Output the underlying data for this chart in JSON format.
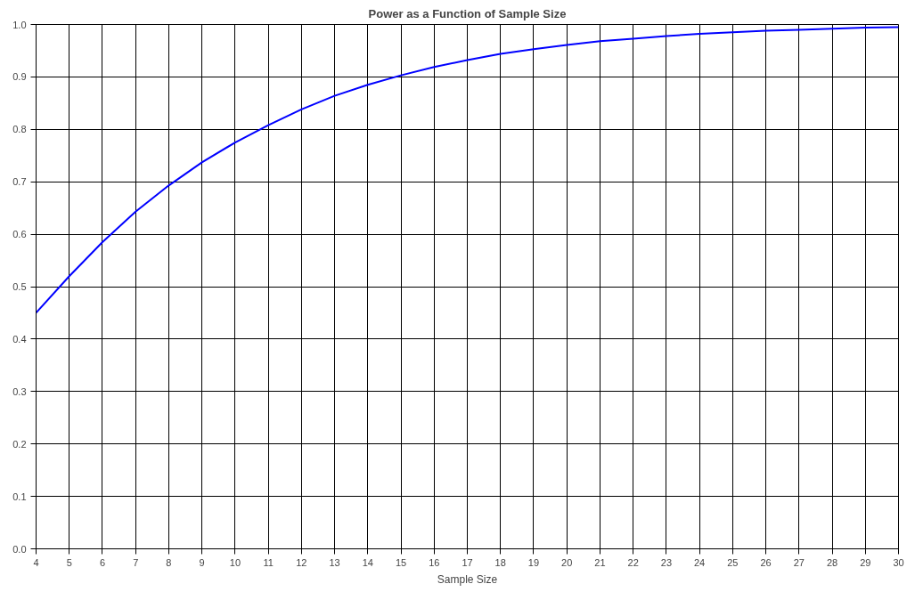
{
  "chart_data": {
    "type": "line",
    "title": "Power as a Function of Sample Size",
    "xlabel": "Sample Size",
    "x": [
      4,
      5,
      6,
      7,
      8,
      9,
      10,
      11,
      12,
      13,
      14,
      15,
      16,
      17,
      18,
      19,
      20,
      21,
      22,
      23,
      24,
      25,
      26,
      27,
      28,
      29,
      30
    ],
    "series": [
      {
        "color": "#0000ff",
        "values": [
          0.45,
          0.52,
          0.585,
          0.643,
          0.693,
          0.737,
          0.775,
          0.808,
          0.838,
          0.864,
          0.885,
          0.903,
          0.919,
          0.932,
          0.944,
          0.953,
          0.961,
          0.968,
          0.973,
          0.978,
          0.982,
          0.985,
          0.988,
          0.99,
          0.992,
          0.994,
          0.995
        ]
      }
    ],
    "xlim": [
      4,
      30
    ],
    "xticks": [
      4,
      5,
      6,
      7,
      8,
      9,
      10,
      11,
      12,
      13,
      14,
      15,
      16,
      17,
      18,
      19,
      20,
      21,
      22,
      23,
      24,
      25,
      26,
      27,
      28,
      29,
      30
    ],
    "ylim": [
      0,
      1
    ],
    "yticks": [
      {
        "value": 0,
        "label": "0.0"
      },
      {
        "value": 0.1,
        "label": "0.1"
      },
      {
        "value": 0.2,
        "label": "0.2"
      },
      {
        "value": 0.3,
        "label": "0.3"
      },
      {
        "value": 0.4,
        "label": "0.4"
      },
      {
        "value": 0.5,
        "label": "0.5"
      },
      {
        "value": 0.6,
        "label": "0.6"
      },
      {
        "value": 0.7,
        "label": "0.7"
      },
      {
        "value": 0.8,
        "label": "0.8"
      },
      {
        "value": 0.9,
        "label": "0.9"
      },
      {
        "value": 1,
        "label": "1.0"
      }
    ],
    "grid": true,
    "marker": "none",
    "line_style": "solid"
  }
}
